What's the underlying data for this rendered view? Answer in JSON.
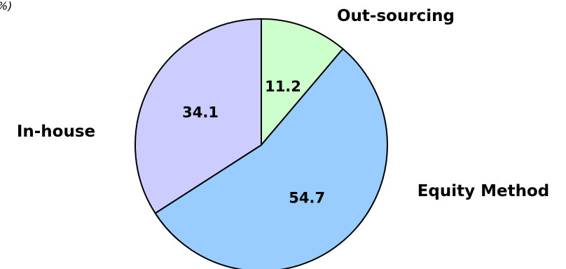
{
  "unit_label": "%)",
  "chart_data": {
    "type": "pie",
    "title": "",
    "categories": [
      "Out-sourcing",
      "Equity Method",
      "In-house"
    ],
    "values": [
      11.2,
      54.7,
      34.1
    ],
    "value_labels": [
      "11.2",
      "54.7",
      "34.1"
    ],
    "colors": [
      "#ccffcc",
      "#99ccff",
      "#ccccff"
    ],
    "start": "12 o'clock",
    "direction": "clockwise",
    "legend": "none",
    "data_labels": "inside"
  }
}
